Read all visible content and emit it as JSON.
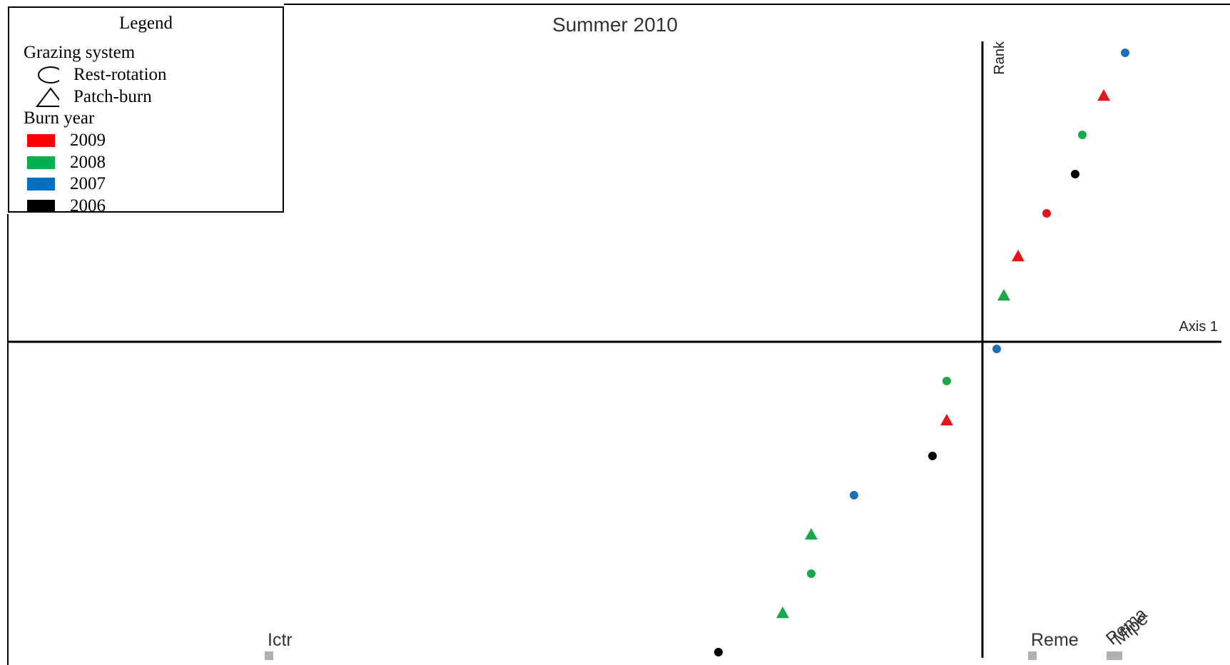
{
  "chart_data": {
    "type": "scatter",
    "title": "Summer 2010",
    "xlabel": "Axis 1",
    "ylabel": "Rank",
    "grid": false,
    "legend_position": "top-left",
    "legend": {
      "title": "Legend",
      "shape_heading": "Grazing system",
      "shapes": [
        {
          "label": "Rest-rotation",
          "shape": "circle"
        },
        {
          "label": "Patch-burn",
          "shape": "triangle"
        }
      ],
      "color_heading": "Burn year",
      "colors": [
        {
          "label": "2009",
          "color": "#ff0000"
        },
        {
          "label": "2008",
          "color": "#00b050"
        },
        {
          "label": "2007",
          "color": "#0070c0"
        },
        {
          "label": "2006",
          "color": "#000000"
        }
      ]
    },
    "colors": {
      "2009": "#e8141b",
      "2008": "#1aa84a",
      "2007": "#1d6fb8",
      "2006": "#000000"
    },
    "xlim": [
      -1.0,
      0.2
    ],
    "ylim": [
      -1.0,
      0.9
    ],
    "points": [
      {
        "x": 0.2,
        "y": 0.81,
        "grazing": "Rest-rotation",
        "burn_year": "2007"
      },
      {
        "x": 0.17,
        "y": 0.69,
        "grazing": "Patch-burn",
        "burn_year": "2009"
      },
      {
        "x": 0.14,
        "y": 0.58,
        "grazing": "Rest-rotation",
        "burn_year": "2008"
      },
      {
        "x": 0.13,
        "y": 0.47,
        "grazing": "Rest-rotation",
        "burn_year": "2006"
      },
      {
        "x": 0.09,
        "y": 0.36,
        "grazing": "Rest-rotation",
        "burn_year": "2009"
      },
      {
        "x": 0.05,
        "y": 0.24,
        "grazing": "Patch-burn",
        "burn_year": "2009"
      },
      {
        "x": 0.03,
        "y": 0.13,
        "grazing": "Patch-burn",
        "burn_year": "2008"
      },
      {
        "x": 0.02,
        "y": -0.02,
        "grazing": "Rest-rotation",
        "burn_year": "2007"
      },
      {
        "x": -0.05,
        "y": -0.11,
        "grazing": "Rest-rotation",
        "burn_year": "2008"
      },
      {
        "x": -0.05,
        "y": -0.22,
        "grazing": "Patch-burn",
        "burn_year": "2009"
      },
      {
        "x": -0.07,
        "y": -0.32,
        "grazing": "Rest-rotation",
        "burn_year": "2006"
      },
      {
        "x": -0.18,
        "y": -0.43,
        "grazing": "Rest-rotation",
        "burn_year": "2007"
      },
      {
        "x": -0.24,
        "y": -0.54,
        "grazing": "Patch-burn",
        "burn_year": "2008"
      },
      {
        "x": -0.24,
        "y": -0.65,
        "grazing": "Rest-rotation",
        "burn_year": "2008"
      },
      {
        "x": -0.28,
        "y": -0.76,
        "grazing": "Patch-burn",
        "burn_year": "2008"
      },
      {
        "x": -0.37,
        "y": -0.87,
        "grazing": "Rest-rotation",
        "burn_year": "2006"
      }
    ],
    "species": [
      {
        "label": "Ictr",
        "x": -1.0,
        "y": -0.88
      },
      {
        "label": "Reme",
        "x": 0.07,
        "y": -0.88
      },
      {
        "label": "Pema",
        "x": 0.18,
        "y": -0.88
      },
      {
        "label": "Mipe",
        "x": 0.19,
        "y": -0.88
      }
    ]
  }
}
